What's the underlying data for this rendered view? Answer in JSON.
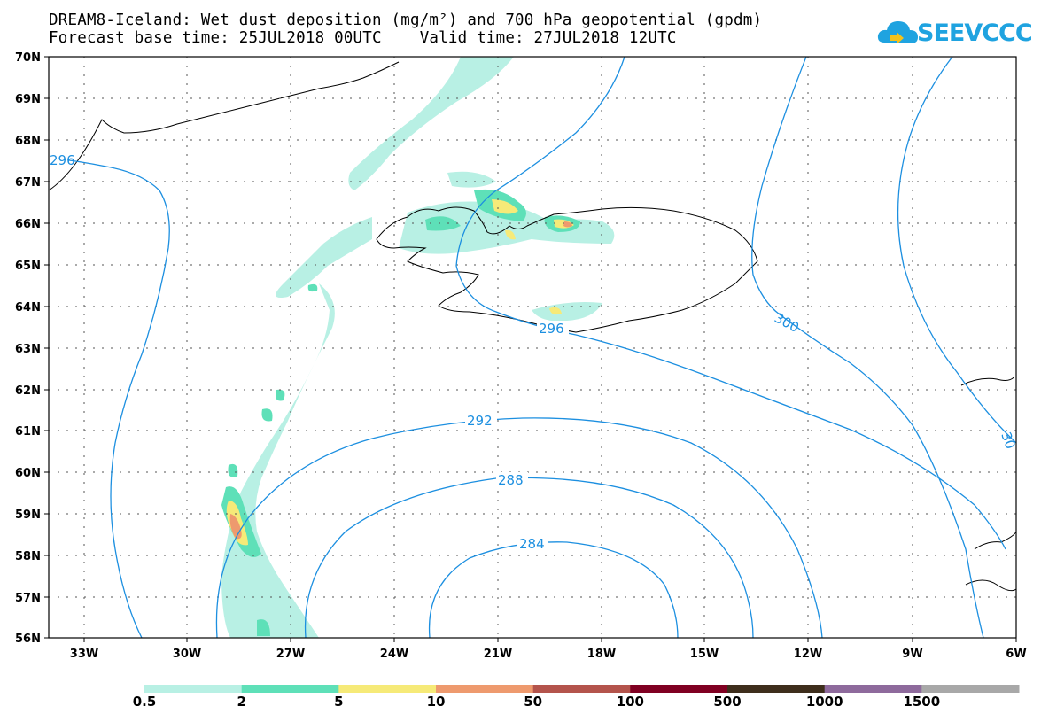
{
  "title_line1": "DREAM8-Iceland: Wet dust deposition (mg/m²) and 700 hPa geopotential (gpdm)",
  "title_line2": "Forecast base time: 25JUL2018 00UTC    Valid time: 27JUL2018 12UTC",
  "logo_text": "SEEVCCC",
  "map": {
    "lon_labels": [
      "33W",
      "30W",
      "27W",
      "24W",
      "21W",
      "18W",
      "15W",
      "12W",
      "9W",
      "6W"
    ],
    "lat_labels": [
      "70N",
      "69N",
      "68N",
      "67N",
      "66N",
      "65N",
      "64N",
      "63N",
      "62N",
      "61N",
      "60N",
      "59N",
      "58N",
      "57N",
      "56N"
    ],
    "contour_labels": [
      "284",
      "288",
      "292",
      "296",
      "296",
      "300",
      "30"
    ]
  },
  "legend": {
    "labels": [
      "0.5",
      "2",
      "5",
      "10",
      "50",
      "100",
      "500",
      "1000",
      "1500"
    ],
    "colors": [
      "#b8f0e4",
      "#5ee0b8",
      "#f6ea78",
      "#ee9a6e",
      "#b4544c",
      "#800022",
      "#3e2e1c",
      "#8e6a9c",
      "#a8a8a8"
    ]
  },
  "colors": {
    "contour": "#1c8fe0",
    "coast": "#000000"
  }
}
